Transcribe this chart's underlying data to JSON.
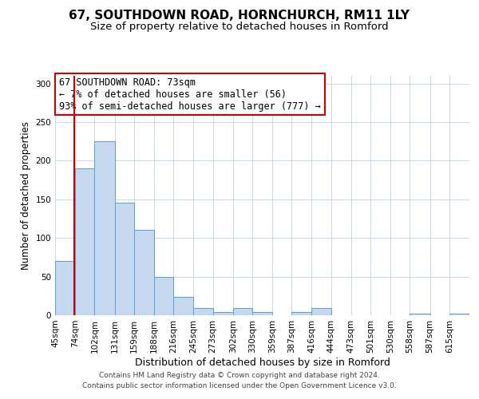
{
  "title": "67, SOUTHDOWN ROAD, HORNCHURCH, RM11 1LY",
  "subtitle": "Size of property relative to detached houses in Romford",
  "xlabel": "Distribution of detached houses by size in Romford",
  "ylabel": "Number of detached properties",
  "bar_labels": [
    "45sqm",
    "74sqm",
    "102sqm",
    "131sqm",
    "159sqm",
    "188sqm",
    "216sqm",
    "245sqm",
    "273sqm",
    "302sqm",
    "330sqm",
    "359sqm",
    "387sqm",
    "416sqm",
    "444sqm",
    "473sqm",
    "501sqm",
    "530sqm",
    "558sqm",
    "587sqm",
    "615sqm"
  ],
  "bar_heights": [
    70,
    190,
    225,
    146,
    111,
    50,
    24,
    9,
    4,
    9,
    4,
    0,
    4,
    9,
    0,
    0,
    0,
    0,
    2,
    0,
    2
  ],
  "bar_left_edges": [
    45,
    74,
    102,
    131,
    159,
    188,
    216,
    245,
    273,
    302,
    330,
    359,
    387,
    416,
    444,
    473,
    501,
    530,
    558,
    587,
    615
  ],
  "bar_widths": [
    29,
    28,
    29,
    28,
    29,
    28,
    29,
    28,
    29,
    28,
    29,
    28,
    29,
    28,
    29,
    28,
    29,
    28,
    29,
    28,
    29
  ],
  "bar_color": "#c5d8ed",
  "bar_edge_color": "#5a9fd4",
  "property_line_x": 73,
  "ylim": [
    0,
    310
  ],
  "yticks": [
    0,
    50,
    100,
    150,
    200,
    250,
    300
  ],
  "annotation_title": "67 SOUTHDOWN ROAD: 73sqm",
  "annotation_line1": "← 7% of detached houses are smaller (56)",
  "annotation_line2": "93% of semi-detached houses are larger (777) →",
  "annotation_box_color": "#ffffff",
  "annotation_box_edge_color": "#cc0000",
  "footer_line1": "Contains HM Land Registry data © Crown copyright and database right 2024.",
  "footer_line2": "Contains public sector information licensed under the Open Government Licence v3.0.",
  "background_color": "#ffffff",
  "grid_color": "#c8d8e8",
  "title_fontsize": 11,
  "subtitle_fontsize": 9.5,
  "xlabel_fontsize": 9,
  "ylabel_fontsize": 8.5,
  "tick_fontsize": 7.5,
  "annotation_fontsize": 8.5,
  "footer_fontsize": 6.5
}
